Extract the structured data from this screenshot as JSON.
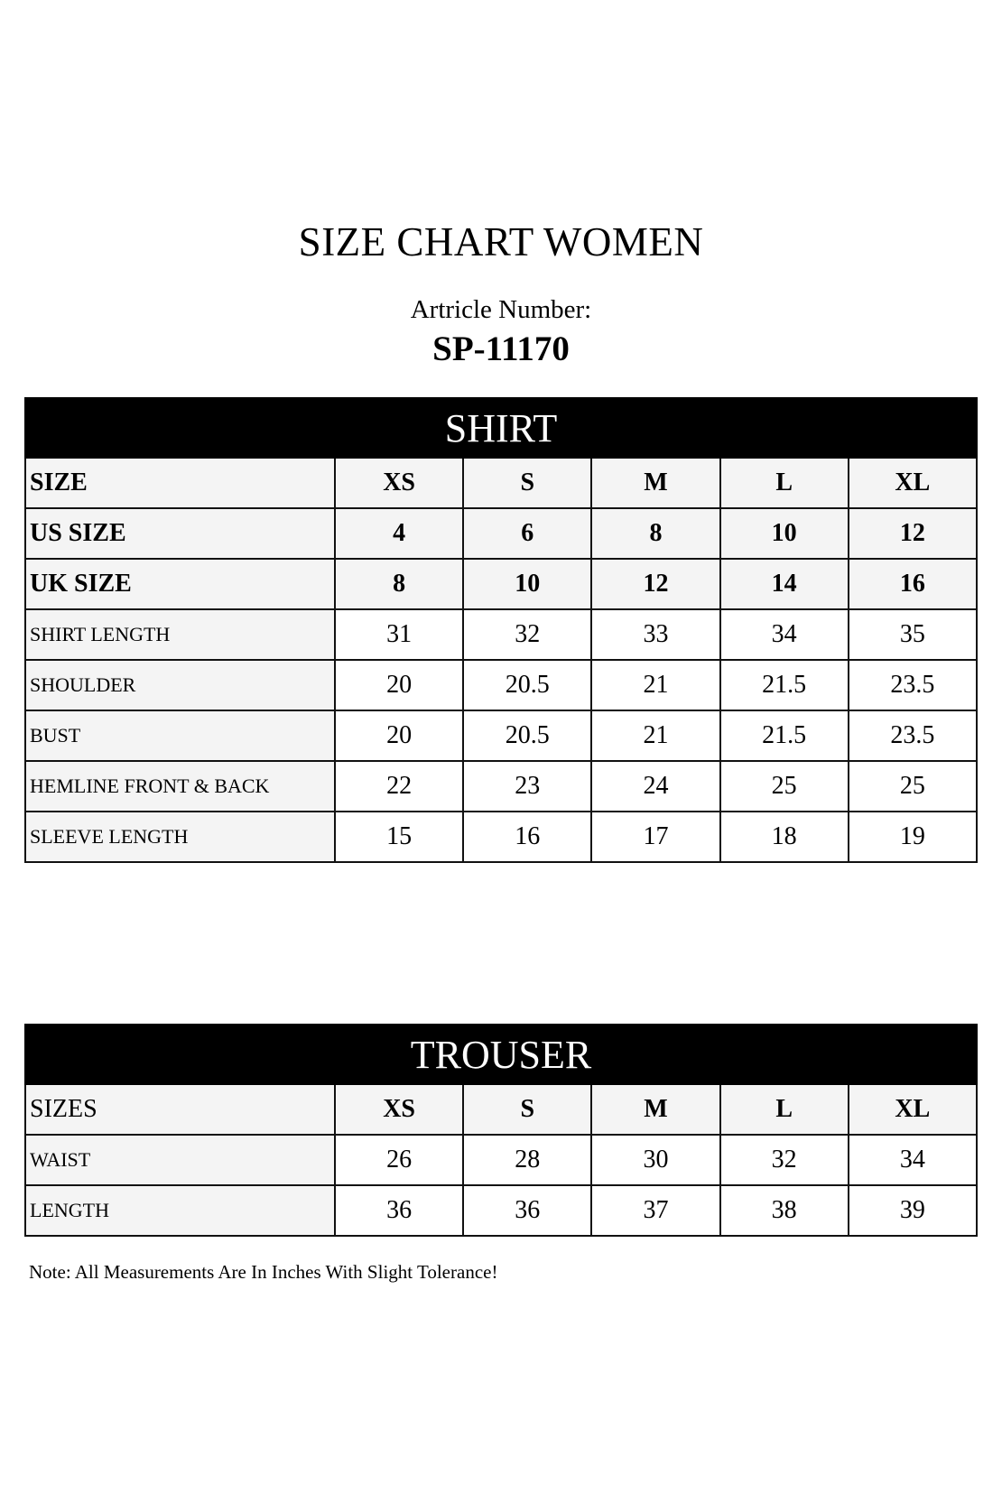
{
  "title": "SIZE CHART WOMEN",
  "article_label": "Artricle Number:",
  "article_number": "SP-11170",
  "shirt": {
    "heading": "SHIRT",
    "header_rows": [
      {
        "label": "SIZE",
        "values": [
          "XS",
          "S",
          "M",
          "L",
          "XL"
        ]
      },
      {
        "label": "US SIZE",
        "values": [
          "4",
          "6",
          "8",
          "10",
          "12"
        ]
      },
      {
        "label": "UK SIZE",
        "values": [
          "8",
          "10",
          "12",
          "14",
          "16"
        ]
      }
    ],
    "rows": [
      {
        "label": "SHIRT LENGTH",
        "values": [
          "31",
          "32",
          "33",
          "34",
          "35"
        ]
      },
      {
        "label": "SHOULDER",
        "values": [
          "20",
          "20.5",
          "21",
          "21.5",
          "23.5"
        ]
      },
      {
        "label": "BUST",
        "values": [
          "20",
          "20.5",
          "21",
          "21.5",
          "23.5"
        ]
      },
      {
        "label": "HEMLINE FRONT & BACK",
        "values": [
          "22",
          "23",
          "24",
          "25",
          "25"
        ]
      },
      {
        "label": "SLEEVE LENGTH",
        "values": [
          "15",
          "16",
          "17",
          "18",
          "19"
        ]
      }
    ]
  },
  "trouser": {
    "heading": "TROUSER",
    "header_rows": [
      {
        "label": "SIZES",
        "values": [
          "XS",
          "S",
          "M",
          "L",
          "XL"
        ]
      }
    ],
    "rows": [
      {
        "label": "WAIST",
        "values": [
          "26",
          "28",
          "30",
          "32",
          "34"
        ]
      },
      {
        "label": "LENGTH",
        "values": [
          "36",
          "36",
          "37",
          "38",
          "39"
        ]
      }
    ]
  },
  "note": "Note: All Measurements Are In Inches With Slight Tolerance!"
}
